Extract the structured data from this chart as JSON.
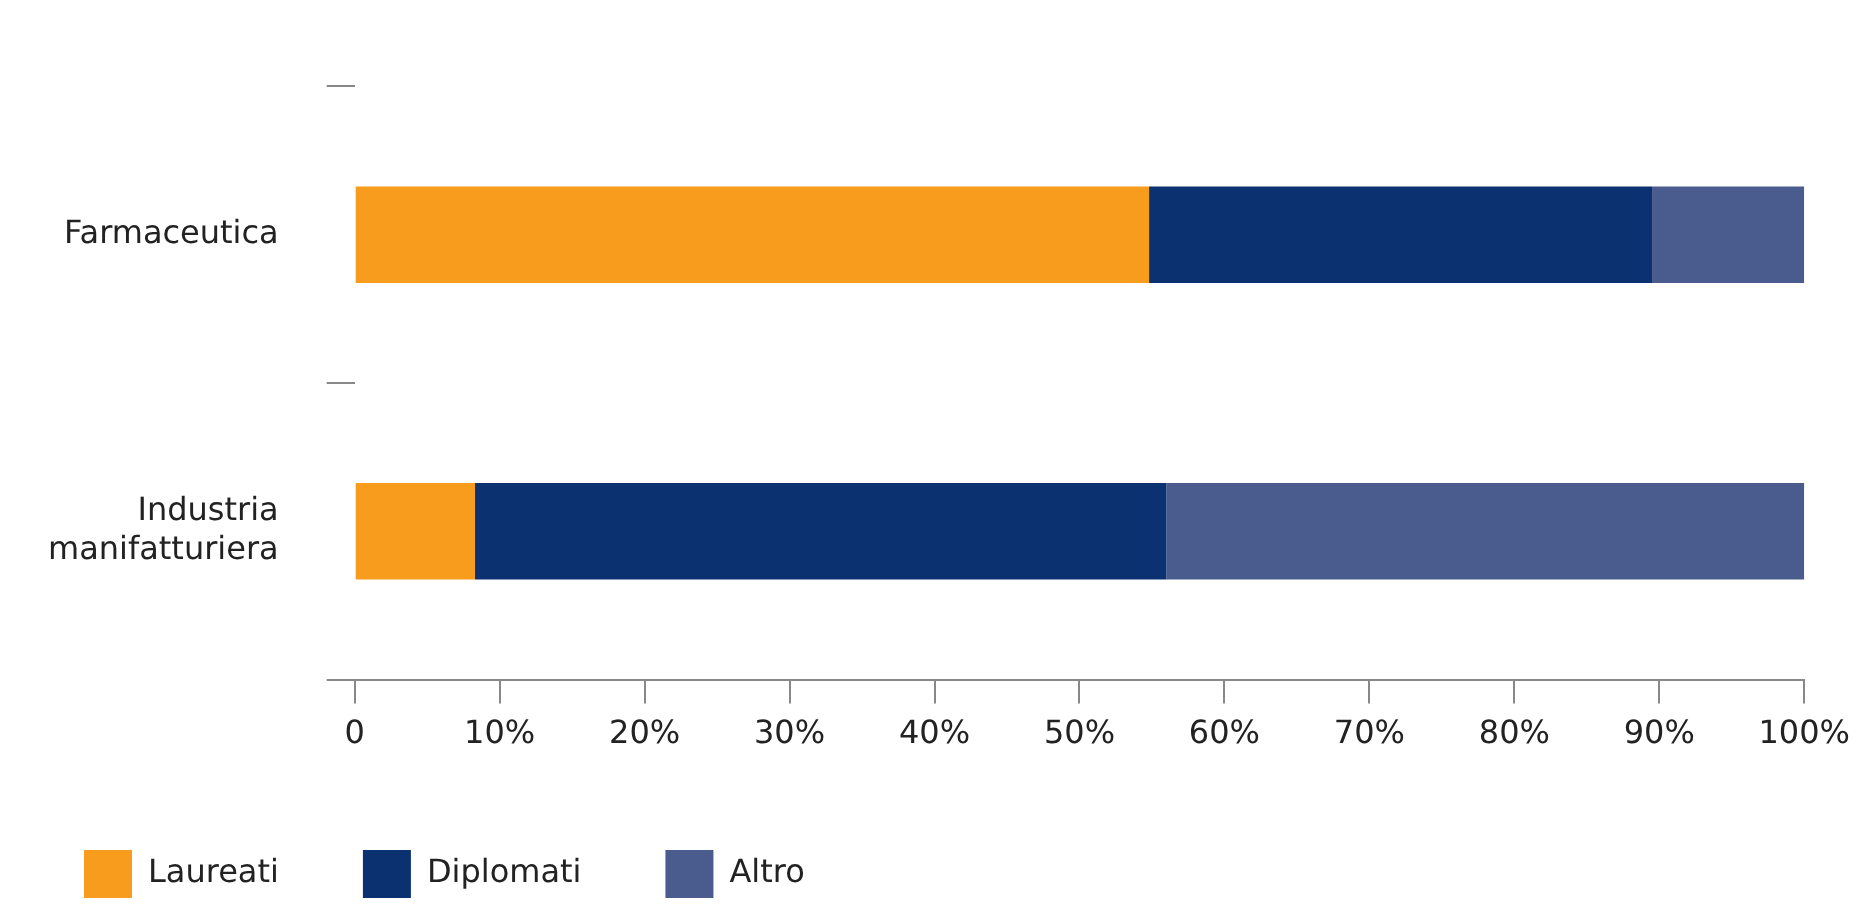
{
  "chart_data": {
    "type": "bar",
    "orientation": "horizontal",
    "stacked": true,
    "categories": [
      "Farmaceutica",
      "Industria manifatturiera"
    ],
    "series": [
      {
        "name": "Laureati",
        "color": "#f79c1d",
        "values": [
          54.8,
          8.3
        ]
      },
      {
        "name": "Diplomati",
        "color": "#0b3170",
        "values": [
          34.7,
          47.7
        ]
      },
      {
        "name": "Altro",
        "color": "#4a5b8e",
        "values": [
          10.5,
          44.0
        ]
      }
    ],
    "xlim": [
      0,
      100
    ],
    "xticks": [
      {
        "value": 0,
        "label": "0"
      },
      {
        "value": 10,
        "label": "10%"
      },
      {
        "value": 20,
        "label": "20%"
      },
      {
        "value": 30,
        "label": "30%"
      },
      {
        "value": 40,
        "label": "40%"
      },
      {
        "value": 50,
        "label": "50%"
      },
      {
        "value": 60,
        "label": "60%"
      },
      {
        "value": 70,
        "label": "70%"
      },
      {
        "value": 80,
        "label": "80%"
      },
      {
        "value": 90,
        "label": "90%"
      },
      {
        "value": 100,
        "label": "100%"
      }
    ],
    "grid": false,
    "legend": "bottom left"
  }
}
